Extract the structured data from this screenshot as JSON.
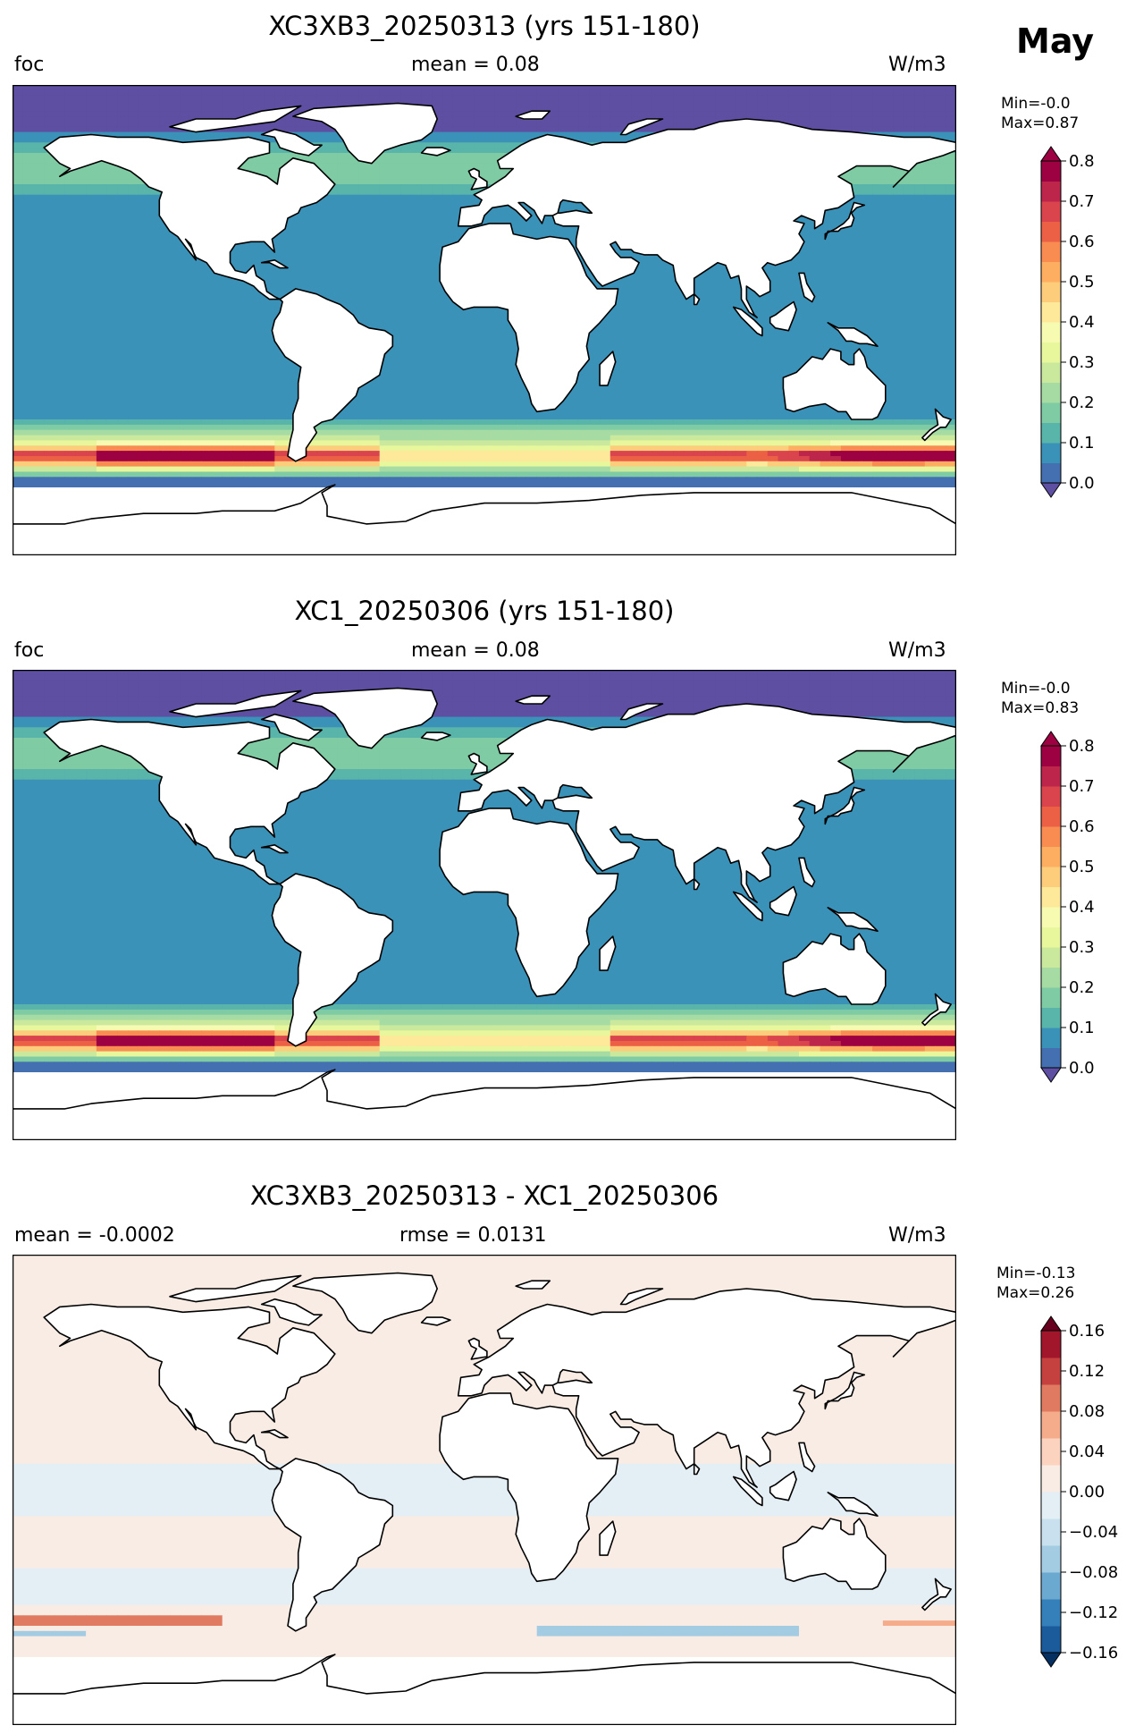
{
  "month": "May",
  "colors": {
    "seq": [
      "#5e4fa2",
      "#4470b1",
      "#3b92b8",
      "#59b4aa",
      "#7ecba4",
      "#a6dba4",
      "#cae99d",
      "#e8f69c",
      "#f7fbb2",
      "#fee89a",
      "#fdcd7b",
      "#fdae61",
      "#f88c51",
      "#ec6145",
      "#d9444d",
      "#be254a",
      "#9e0142"
    ],
    "div": [
      "#053061",
      "#1b5a9b",
      "#3580bb",
      "#6ba9d0",
      "#a3cce3",
      "#c9e1ee",
      "#e4eef5",
      "#f9ece5",
      "#fbd3bf",
      "#f5ac8b",
      "#e07b62",
      "#c4413f",
      "#a1162b",
      "#67001f"
    ],
    "land": "#ffffff",
    "coast": "#000000"
  },
  "panels": [
    {
      "title": "XC3XB3_20250313 (yrs 151-180)",
      "left_label": "foc",
      "center_label": "mean = 0.08",
      "units": "W/m3",
      "min_label": "Min=-0.0",
      "max_label": "Max=0.87",
      "colormap": "Spectral_r",
      "colorbar_ticks": [
        "0.0",
        "0.1",
        "0.2",
        "0.3",
        "0.4",
        "0.5",
        "0.6",
        "0.7",
        "0.8"
      ]
    },
    {
      "title": "XC1_20250306 (yrs 151-180)",
      "left_label": "foc",
      "center_label": "mean = 0.08",
      "units": "W/m3",
      "min_label": "Min=-0.0",
      "max_label": "Max=0.83",
      "colormap": "Spectral_r",
      "colorbar_ticks": [
        "0.0",
        "0.1",
        "0.2",
        "0.3",
        "0.4",
        "0.5",
        "0.6",
        "0.7",
        "0.8"
      ]
    },
    {
      "title": "XC3XB3_20250313 - XC1_20250306",
      "left_label": "mean = -0.0002",
      "center_label": "rmse = 0.0131",
      "units": "W/m3",
      "min_label": "Min=-0.13",
      "max_label": "Max=0.26",
      "colormap": "RdBu_r",
      "colorbar_ticks": [
        "−0.16",
        "−0.12",
        "−0.08",
        "−0.04",
        "0.00",
        "0.04",
        "0.08",
        "0.12",
        "0.16"
      ]
    }
  ],
  "chart_data": [
    {
      "type": "heatmap",
      "title": "XC3XB3_20250313 (yrs 151-180)",
      "variable": "foc",
      "units": "W/m3",
      "mean": 0.08,
      "min": -0.0,
      "max": 0.87,
      "colorbar_range": [
        0.0,
        0.8
      ],
      "colorbar_step": 0.05,
      "zonal_profile": [
        {
          "lat": 90,
          "value": 0.0
        },
        {
          "lat": 75,
          "value": 0.05
        },
        {
          "lat": 62,
          "value": 0.15
        },
        {
          "lat": 50,
          "value": 0.2
        },
        {
          "lat": 40,
          "value": 0.12
        },
        {
          "lat": 20,
          "value": 0.05
        },
        {
          "lat": 0,
          "value": 0.05
        },
        {
          "lat": -20,
          "value": 0.05
        },
        {
          "lat": -35,
          "value": 0.1
        },
        {
          "lat": -42,
          "value": 0.2
        },
        {
          "lat": -47,
          "value": 0.4
        },
        {
          "lat": -52,
          "value": 0.65
        },
        {
          "lat": -55,
          "value": 0.45
        },
        {
          "lat": -58,
          "value": 0.15
        },
        {
          "lat": -63,
          "value": 0.0
        }
      ]
    },
    {
      "type": "heatmap",
      "title": "XC1_20250306 (yrs 151-180)",
      "variable": "foc",
      "units": "W/m3",
      "mean": 0.08,
      "min": -0.0,
      "max": 0.83,
      "colorbar_range": [
        0.0,
        0.8
      ],
      "colorbar_step": 0.05,
      "zonal_profile": [
        {
          "lat": 90,
          "value": 0.0
        },
        {
          "lat": 75,
          "value": 0.05
        },
        {
          "lat": 62,
          "value": 0.15
        },
        {
          "lat": 50,
          "value": 0.2
        },
        {
          "lat": 40,
          "value": 0.12
        },
        {
          "lat": 20,
          "value": 0.05
        },
        {
          "lat": 0,
          "value": 0.05
        },
        {
          "lat": -20,
          "value": 0.05
        },
        {
          "lat": -35,
          "value": 0.1
        },
        {
          "lat": -42,
          "value": 0.2
        },
        {
          "lat": -47,
          "value": 0.4
        },
        {
          "lat": -52,
          "value": 0.65
        },
        {
          "lat": -55,
          "value": 0.45
        },
        {
          "lat": -58,
          "value": 0.15
        },
        {
          "lat": -63,
          "value": 0.0
        }
      ]
    },
    {
      "type": "heatmap",
      "title": "XC3XB3_20250313 - XC1_20250306",
      "units": "W/m3",
      "mean": -0.0002,
      "rmse": 0.0131,
      "min": -0.13,
      "max": 0.26,
      "colorbar_range": [
        -0.16,
        0.16
      ],
      "colorbar_step": 0.02,
      "zonal_profile": [
        {
          "lat": 90,
          "value": 0.01
        },
        {
          "lat": 60,
          "value": 0.005
        },
        {
          "lat": 40,
          "value": 0.01
        },
        {
          "lat": 20,
          "value": 0.01
        },
        {
          "lat": 0,
          "value": -0.005
        },
        {
          "lat": -20,
          "value": 0.005
        },
        {
          "lat": -35,
          "value": -0.005
        },
        {
          "lat": -45,
          "value": 0.01
        },
        {
          "lat": -50,
          "value": 0.04
        },
        {
          "lat": -53,
          "value": -0.02
        },
        {
          "lat": -56,
          "value": 0.005
        },
        {
          "lat": -63,
          "value": 0.01
        }
      ]
    }
  ]
}
